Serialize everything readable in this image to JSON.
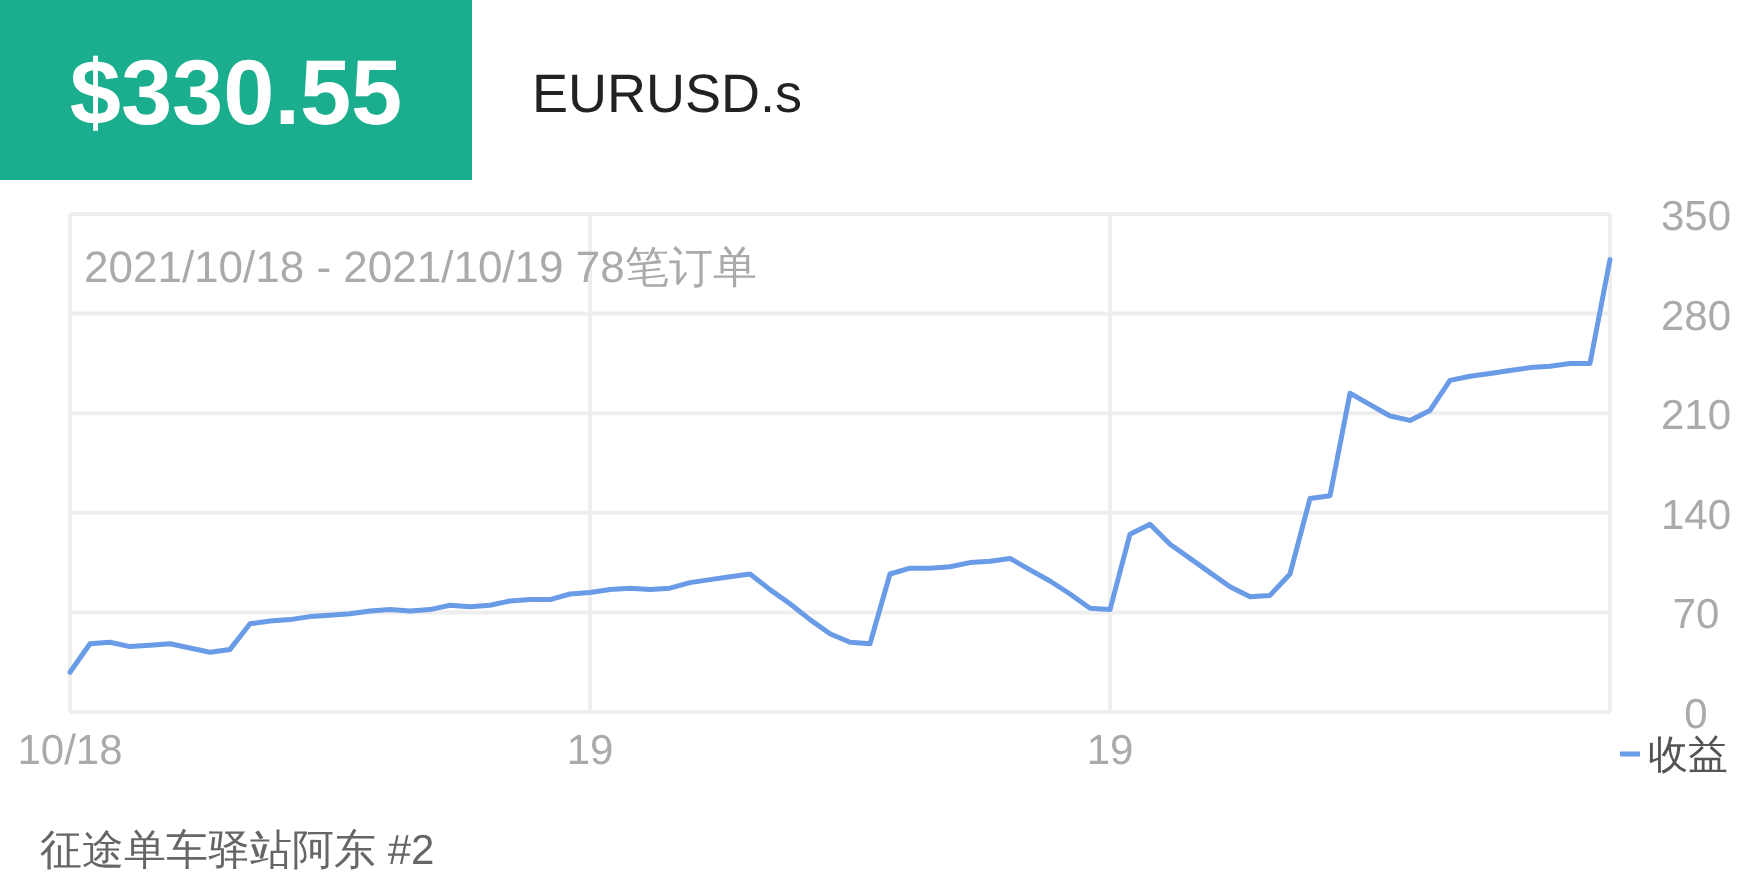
{
  "chart_data": {
    "type": "line",
    "title": "$330.55",
    "subtitle": "EURUSD.s",
    "annotations": [
      "2021/10/18 - 2021/10/19 78笔订单",
      "征途单车驿站阿东 #2"
    ],
    "categories": [
      "10/18",
      null,
      null,
      null,
      null,
      null,
      null,
      null,
      null,
      null,
      null,
      null,
      null,
      null,
      null,
      null,
      null,
      null,
      null,
      null,
      null,
      null,
      null,
      null,
      null,
      null,
      "19",
      null,
      null,
      null,
      null,
      null,
      null,
      null,
      null,
      null,
      null,
      null,
      null,
      null,
      null,
      null,
      null,
      null,
      null,
      null,
      null,
      null,
      null,
      null,
      null,
      null,
      "19",
      null,
      null,
      null,
      null,
      null,
      null,
      null,
      null,
      null,
      null,
      null,
      null,
      null,
      null,
      null,
      null,
      null,
      null,
      null,
      null,
      null,
      null,
      null,
      null,
      null
    ],
    "series": [
      {
        "name": "收益",
        "color": "#6a9be6",
        "values": [
          28,
          48,
          49,
          46,
          47,
          48,
          45,
          42,
          44,
          62,
          64,
          65,
          67,
          68,
          69,
          71,
          72,
          71,
          72,
          75,
          74,
          75,
          78,
          79,
          79,
          83,
          84,
          86,
          87,
          86,
          87,
          91,
          93,
          95,
          97,
          86,
          76,
          65,
          55,
          49,
          48,
          97,
          101,
          101,
          102,
          105,
          106,
          108,
          100,
          92,
          83,
          73,
          72,
          125,
          132,
          118,
          108,
          98,
          88,
          81,
          82,
          97,
          150,
          152,
          224,
          216,
          208,
          205,
          212,
          233,
          236,
          238,
          240,
          242,
          243,
          245,
          245,
          318
        ]
      }
    ],
    "ylim": [
      0,
      350
    ],
    "yticks": [
      0,
      70,
      140,
      210,
      280,
      350
    ],
    "grid": true,
    "legend": "bottom right",
    "line_style": "solid",
    "marker": "none"
  }
}
